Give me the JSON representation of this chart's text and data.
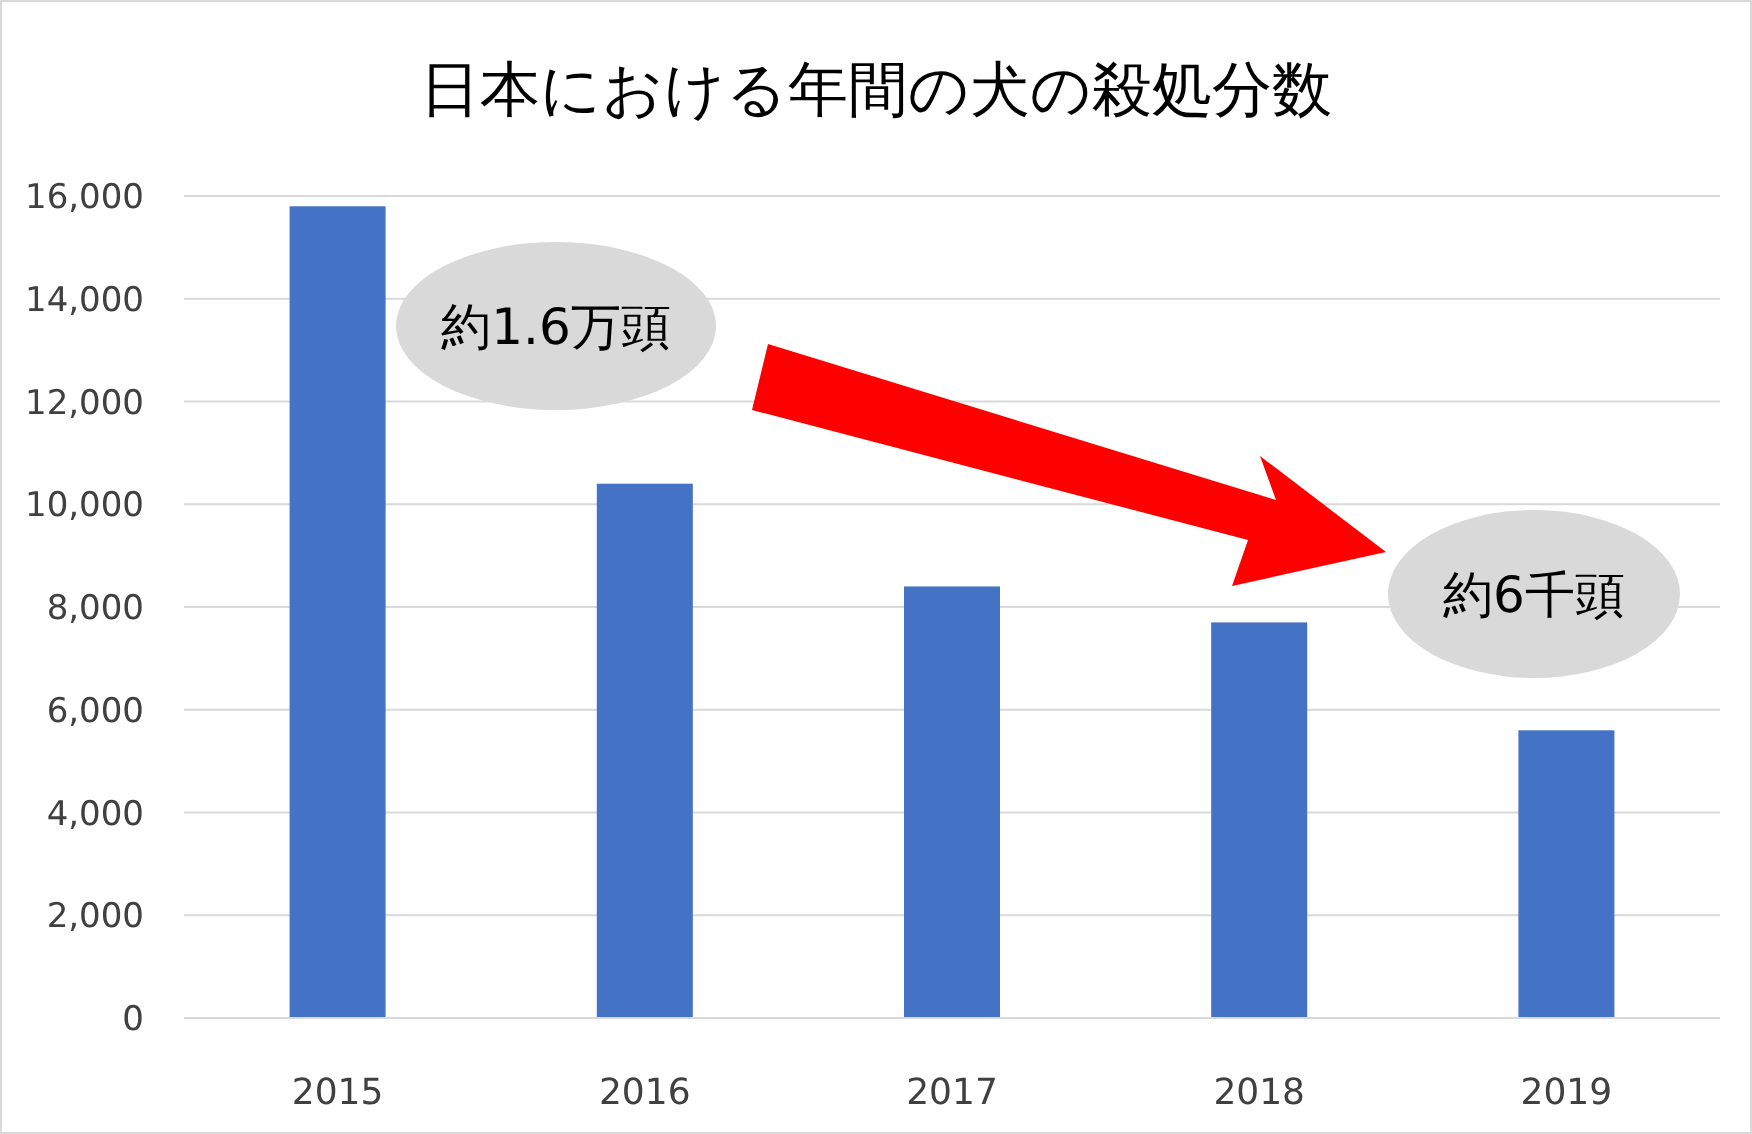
{
  "chart_data": {
    "type": "bar",
    "title": "日本における年間の犬の殺処分数",
    "categories": [
      "2015",
      "2016",
      "2017",
      "2018",
      "2019"
    ],
    "values": [
      15800,
      10400,
      8400,
      7700,
      5600
    ],
    "color": "#4472c4",
    "ylim": [
      0,
      16000
    ],
    "yticks": [
      {
        "value": 0,
        "label": "0"
      },
      {
        "value": 2000,
        "label": "2,000"
      },
      {
        "value": 4000,
        "label": "4,000"
      },
      {
        "value": 6000,
        "label": "6,000"
      },
      {
        "value": 8000,
        "label": "8,000"
      },
      {
        "value": 10000,
        "label": "10,000"
      },
      {
        "value": 12000,
        "label": "12,000"
      },
      {
        "value": 14000,
        "label": "14,000"
      },
      {
        "value": 16000,
        "label": "16,000"
      }
    ],
    "grid": "y",
    "annotations": [
      "約1.6万頭",
      "約6千頭"
    ]
  }
}
